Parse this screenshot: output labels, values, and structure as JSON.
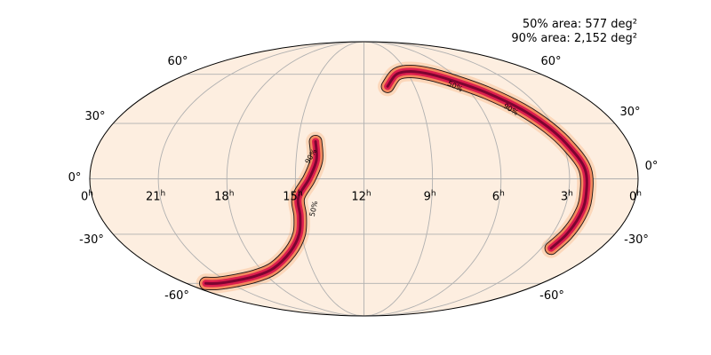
{
  "chart_data": {
    "type": "heatmap",
    "projection": "mollweide",
    "annotations": {
      "area_50": "50% area: 577 deg²",
      "area_90": "90% area: 2,152 deg²"
    },
    "ra_tick_hours": [
      "0",
      "21",
      "18",
      "15",
      "12",
      "9",
      "6",
      "3",
      "0"
    ],
    "ra_tick_unit": "h",
    "dec_tick_labels": {
      "left": [
        "60°",
        "30°",
        "0°",
        "-30°",
        "-60°"
      ],
      "right": [
        "60°",
        "30°",
        "0°",
        "-30°",
        "-60°"
      ]
    },
    "dec_ticks_deg": [
      60,
      30,
      0,
      -30,
      -60
    ],
    "contour_labels": [
      "50%",
      "90%",
      "50%",
      "90%"
    ],
    "contour_levels_percent": [
      50,
      90
    ],
    "colormap": "cylon",
    "colors": {
      "background_prob": "#fdeee0",
      "low": "#fbcfae",
      "mid": "#f38a5f",
      "high": "#dc1e4e",
      "peak": "#7d0430",
      "grid": "#b0b0b0"
    },
    "arcs": [
      {
        "ra_hours": [
          14.2,
          14.1,
          14.4,
          14.9,
          14.9,
          15.1,
          15.8,
          17.2,
          18.7,
          20.3,
          21.9,
          22.7
        ],
        "dec_deg": [
          20,
          10,
          0,
          -10,
          -20,
          -30,
          -40,
          -50,
          -55,
          -58,
          -60,
          -60
        ]
      },
      {
        "ra_hours": [
          10.6,
          9.8,
          8.7,
          7.5,
          6.3,
          5.1,
          4.0,
          3.3,
          2.8,
          2.3,
          2.2,
          2.2,
          2.3,
          2.5
        ],
        "dec_deg": [
          52,
          60,
          62,
          60,
          55,
          48,
          38,
          28,
          18,
          5,
          -10,
          -20,
          -30,
          -38
        ]
      }
    ]
  }
}
